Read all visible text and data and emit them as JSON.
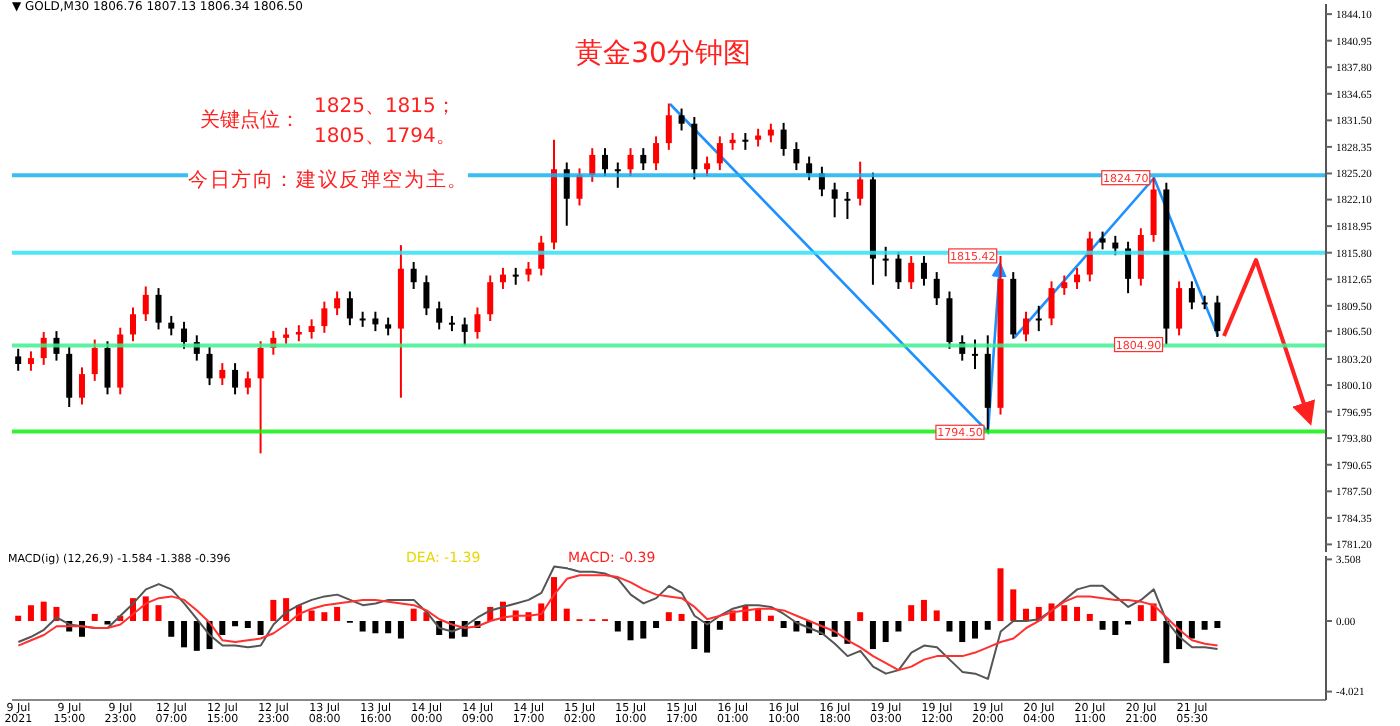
{
  "chart_data": [
    {
      "type": "candlestick",
      "title": "黄金30分钟图",
      "annotations": [
        "▼ GOLD,M30 1806.76 1807.13 1806.34 1806.50",
        "关键点位：",
        "1825、1815；",
        "1805、1794。",
        "今日方向：建议反弹空为主。",
        {
          "text": "1824.70",
          "y": 1824.7
        },
        {
          "text": "1815.42",
          "y": 1815.42
        },
        {
          "text": "1804.90",
          "y": 1804.9
        },
        {
          "text": "1794.50",
          "y": 1794.5
        }
      ],
      "categories": [
        null,
        null,
        null,
        null,
        null,
        null,
        null,
        null,
        null,
        null,
        null,
        null,
        null,
        null,
        null,
        null,
        null,
        null,
        null,
        null,
        null,
        null,
        null,
        null,
        null,
        null,
        null,
        null,
        null,
        null,
        null,
        null,
        null,
        null,
        null,
        null,
        null,
        null,
        null,
        null,
        null,
        null,
        null,
        null,
        null,
        null,
        null,
        null,
        null,
        null,
        null,
        null,
        null,
        null,
        null,
        null,
        null,
        null,
        null,
        null,
        null,
        null,
        null,
        null,
        null,
        null,
        null,
        null,
        null,
        null,
        null,
        null,
        null,
        null,
        null,
        null,
        null,
        null,
        null,
        null,
        null,
        null,
        null,
        null,
        null,
        null,
        null,
        null,
        null,
        null,
        null,
        null,
        null,
        null,
        null,
        null,
        null,
        null,
        null,
        null,
        null,
        null,
        null
      ],
      "ohlc": [
        [
          1803.5,
          1804.4,
          1801.8,
          1802.6
        ],
        [
          1802.6,
          1804.1,
          1801.8,
          1803.3
        ],
        [
          1803.3,
          1806.4,
          1802.5,
          1805.7
        ],
        [
          1805.7,
          1806.5,
          1803.0,
          1803.8
        ],
        [
          1803.8,
          1804.6,
          1797.5,
          1798.6
        ],
        [
          1798.6,
          1802.2,
          1797.8,
          1801.4
        ],
        [
          1801.4,
          1805.5,
          1800.6,
          1804.5
        ],
        [
          1804.5,
          1805.3,
          1799.0,
          1799.8
        ],
        [
          1799.8,
          1806.9,
          1799.0,
          1806.1
        ],
        [
          1806.1,
          1809.3,
          1805.3,
          1808.5
        ],
        [
          1808.5,
          1811.8,
          1807.7,
          1810.8
        ],
        [
          1810.8,
          1811.6,
          1806.7,
          1807.5
        ],
        [
          1807.5,
          1808.3,
          1806.0,
          1806.8
        ],
        [
          1806.8,
          1807.6,
          1804.4,
          1805.2
        ],
        [
          1805.2,
          1806.0,
          1803.0,
          1803.8
        ],
        [
          1803.8,
          1804.6,
          1800.1,
          1800.9
        ],
        [
          1800.9,
          1802.7,
          1800.1,
          1801.9
        ],
        [
          1801.9,
          1802.7,
          1799.0,
          1799.8
        ],
        [
          1799.8,
          1801.7,
          1799.0,
          1800.9
        ],
        [
          1800.9,
          1805.3,
          1792.0,
          1804.5
        ],
        [
          1804.5,
          1806.5,
          1803.7,
          1805.7
        ],
        [
          1805.7,
          1806.9,
          1805.0,
          1806.1
        ],
        [
          1806.1,
          1807.2,
          1805.3,
          1806.4
        ],
        [
          1806.4,
          1807.9,
          1805.6,
          1807.1
        ],
        [
          1807.1,
          1810.0,
          1806.3,
          1809.2
        ],
        [
          1809.2,
          1811.2,
          1808.4,
          1810.4
        ],
        [
          1810.4,
          1811.2,
          1807.2,
          1808.0
        ],
        [
          1808.0,
          1808.8,
          1807.0,
          1808.0
        ],
        [
          1808.0,
          1808.8,
          1806.5,
          1807.3
        ],
        [
          1807.3,
          1808.1,
          1806.0,
          1806.8
        ],
        [
          1806.8,
          1816.7,
          1798.6,
          1813.9
        ],
        [
          1813.9,
          1814.7,
          1811.5,
          1812.3
        ],
        [
          1812.3,
          1813.1,
          1808.4,
          1809.2
        ],
        [
          1809.2,
          1810.0,
          1806.7,
          1807.5
        ],
        [
          1807.5,
          1808.3,
          1806.5,
          1807.3
        ],
        [
          1807.3,
          1808.1,
          1804.8,
          1806.4
        ],
        [
          1806.4,
          1809.3,
          1805.6,
          1808.5
        ],
        [
          1808.5,
          1813.1,
          1807.7,
          1812.3
        ],
        [
          1812.3,
          1814.0,
          1811.5,
          1813.2
        ],
        [
          1813.2,
          1814.0,
          1812.0,
          1813.2
        ],
        [
          1813.2,
          1814.7,
          1812.4,
          1813.9
        ],
        [
          1813.9,
          1817.8,
          1813.1,
          1817.0
        ],
        [
          1817.0,
          1829.2,
          1816.2,
          1825.7
        ],
        [
          1825.7,
          1826.5,
          1819.0,
          1822.2
        ],
        [
          1822.2,
          1825.8,
          1821.4,
          1825.0
        ],
        [
          1825.0,
          1828.2,
          1824.2,
          1827.4
        ],
        [
          1827.4,
          1828.2,
          1824.9,
          1825.7
        ],
        [
          1825.7,
          1826.5,
          1823.5,
          1825.7
        ],
        [
          1825.7,
          1828.2,
          1824.9,
          1827.4
        ],
        [
          1827.4,
          1828.2,
          1825.6,
          1826.4
        ],
        [
          1826.4,
          1829.6,
          1825.6,
          1828.8
        ],
        [
          1828.8,
          1833.5,
          1828.0,
          1832.1
        ],
        [
          1832.1,
          1832.9,
          1830.3,
          1831.1
        ],
        [
          1831.1,
          1831.9,
          1824.5,
          1825.7
        ],
        [
          1825.7,
          1827.2,
          1824.9,
          1826.4
        ],
        [
          1826.4,
          1829.6,
          1825.6,
          1828.8
        ],
        [
          1828.8,
          1830.0,
          1828.0,
          1829.2
        ],
        [
          1829.2,
          1830.0,
          1828.0,
          1829.2
        ],
        [
          1829.2,
          1830.5,
          1828.4,
          1829.7
        ],
        [
          1829.7,
          1831.1,
          1828.9,
          1830.4
        ],
        [
          1830.4,
          1831.2,
          1827.3,
          1828.1
        ],
        [
          1828.1,
          1828.9,
          1825.6,
          1826.4
        ],
        [
          1826.4,
          1827.2,
          1824.4,
          1825.2
        ],
        [
          1825.2,
          1826.0,
          1822.5,
          1823.3
        ],
        [
          1823.3,
          1824.1,
          1820.0,
          1822.2
        ],
        [
          1822.2,
          1823.0,
          1819.8,
          1822.2
        ],
        [
          1822.2,
          1826.6,
          1821.4,
          1824.5
        ],
        [
          1824.5,
          1825.3,
          1812.0,
          1815.1
        ],
        [
          1815.1,
          1816.5,
          1813.0,
          1815.1
        ],
        [
          1815.1,
          1815.9,
          1811.5,
          1812.3
        ],
        [
          1812.3,
          1815.4,
          1811.5,
          1814.6
        ],
        [
          1814.6,
          1815.4,
          1811.9,
          1812.7
        ],
        [
          1812.7,
          1813.5,
          1809.6,
          1810.4
        ],
        [
          1810.4,
          1811.2,
          1804.4,
          1805.2
        ],
        [
          1805.2,
          1806.0,
          1803.0,
          1803.8
        ],
        [
          1803.8,
          1805.5,
          1802.0,
          1803.8
        ],
        [
          1803.8,
          1806.0,
          1794.5,
          1797.4
        ],
        [
          1797.4,
          1815.42,
          1796.6,
          1812.7
        ],
        [
          1812.7,
          1813.5,
          1805.6,
          1806.1
        ],
        [
          1806.1,
          1808.8,
          1805.3,
          1808.0
        ],
        [
          1808.0,
          1809.5,
          1806.5,
          1808.0
        ],
        [
          1808.0,
          1812.4,
          1807.2,
          1811.6
        ],
        [
          1811.6,
          1813.1,
          1810.8,
          1812.3
        ],
        [
          1812.3,
          1814.0,
          1811.5,
          1813.2
        ],
        [
          1813.2,
          1818.3,
          1812.4,
          1817.5
        ],
        [
          1817.5,
          1818.3,
          1816.2,
          1817.0
        ],
        [
          1817.0,
          1817.8,
          1815.5,
          1816.3
        ],
        [
          1816.3,
          1817.1,
          1811.0,
          1812.7
        ],
        [
          1812.7,
          1818.7,
          1811.9,
          1817.9
        ],
        [
          1817.9,
          1824.7,
          1817.1,
          1823.3
        ],
        [
          1823.3,
          1824.1,
          1804.9,
          1806.8
        ],
        [
          1806.8,
          1812.4,
          1806.0,
          1811.6
        ],
        [
          1811.6,
          1812.4,
          1809.1,
          1809.9
        ],
        [
          1809.9,
          1810.7,
          1809.1,
          1809.9
        ],
        [
          1809.9,
          1810.7,
          1805.8,
          1806.5
        ],
        null,
        null,
        null,
        null,
        null,
        null,
        null,
        null
      ],
      "colors": [
        "#000000",
        "#ff0000",
        "#ff0000",
        "#000000",
        "#000000",
        "#ff0000",
        "#ff0000",
        "#000000",
        "#ff0000",
        "#ff0000",
        "#ff0000",
        "#000000",
        "#000000",
        "#000000",
        "#000000",
        "#000000",
        "#ff0000",
        "#000000",
        "#ff0000",
        "#ff0000",
        "#ff0000",
        "#ff0000",
        "#ff0000",
        "#ff0000",
        "#ff0000",
        "#ff0000",
        "#000000",
        "#000000",
        "#000000",
        "#000000",
        "#ff0000",
        "#000000",
        "#000000",
        "#000000",
        "#000000",
        "#000000",
        "#ff0000",
        "#ff0000",
        "#ff0000",
        "#000000",
        "#ff0000",
        "#ff0000",
        "#ff0000",
        "#000000",
        "#ff0000",
        "#ff0000",
        "#000000",
        "#000000",
        "#ff0000",
        "#000000",
        "#ff0000",
        "#ff0000",
        "#000000",
        "#000000",
        "#ff0000",
        "#ff0000",
        "#ff0000",
        "#000000",
        "#ff0000",
        "#ff0000",
        "#000000",
        "#000000",
        "#000000",
        "#000000",
        "#000000",
        "#000000",
        "#ff0000",
        "#000000",
        "#000000",
        "#000000",
        "#ff0000",
        "#000000",
        "#000000",
        "#000000",
        "#000000",
        "#000000",
        "#000000",
        "#ff0000",
        "#000000",
        "#ff0000",
        "#000000",
        "#ff0000",
        "#ff0000",
        "#ff0000",
        "#ff0000",
        "#000000",
        "#000000",
        "#000000",
        "#ff0000",
        "#ff0000",
        "#000000",
        "#ff0000",
        "#000000",
        "#000000",
        "#000000",
        null,
        null,
        null,
        null,
        null,
        null,
        null,
        null
      ],
      "ylim": [
        1780.3,
        1845.3
      ],
      "yticks": [
        {
          "value": 1844.1,
          "label": "1844.10"
        },
        {
          "value": 1840.95,
          "label": "1840.95"
        },
        {
          "value": 1837.8,
          "label": "1837.80"
        },
        {
          "value": 1834.65,
          "label": "1834.65"
        },
        {
          "value": 1831.5,
          "label": "1831.50"
        },
        {
          "value": 1828.35,
          "label": "1828.35"
        },
        {
          "value": 1825.2,
          "label": "1825.20"
        },
        {
          "value": 1822.1,
          "label": "1822.10"
        },
        {
          "value": 1818.95,
          "label": "1818.95"
        },
        {
          "value": 1815.8,
          "label": "1815.80"
        },
        {
          "value": 1812.65,
          "label": "1812.65"
        },
        {
          "value": 1809.5,
          "label": "1809.50"
        },
        {
          "value": 1806.5,
          "label": "1806.50"
        },
        {
          "value": 1803.2,
          "label": "1803.20"
        },
        {
          "value": 1800.1,
          "label": "1800.10"
        },
        {
          "value": 1796.95,
          "label": "1796.95"
        },
        {
          "value": 1793.8,
          "label": "1793.80"
        },
        {
          "value": 1790.65,
          "label": "1790.65"
        },
        {
          "value": 1787.5,
          "label": "1787.50"
        },
        {
          "value": 1784.35,
          "label": "1784.35"
        },
        {
          "value": 1781.2,
          "label": "1781.20"
        }
      ],
      "tick_labels": "y",
      "ref_lines": [
        {
          "axis": "y",
          "value": 1825.0,
          "color": "#1ab0ee"
        },
        {
          "axis": "y",
          "value": 1815.8,
          "color": "#33e0f5"
        },
        {
          "axis": "y",
          "value": 1804.8,
          "color": "#40f090"
        },
        {
          "axis": "y",
          "value": 1794.6,
          "color": "#11ee11"
        }
      ]
    },
    {
      "type": "bar",
      "annotations": [
        "MACD(ig) (12,26,9) -1.584 -1.388 -0.396",
        "DEA:  -1.39",
        "MACD:  -0.39"
      ],
      "categories": [
        "9 Jul 2021",
        null,
        null,
        null,
        "9 Jul 15:00",
        null,
        null,
        null,
        "9 Jul 23:00",
        null,
        null,
        null,
        "12 Jul 07:00",
        null,
        null,
        null,
        "12 Jul 15:00",
        null,
        null,
        null,
        "12 Jul 23:00",
        null,
        null,
        null,
        "13 Jul 08:00",
        null,
        null,
        null,
        "13 Jul 16:00",
        null,
        null,
        null,
        "14 Jul 00:00",
        null,
        null,
        null,
        "14 Jul 09:00",
        null,
        null,
        null,
        "14 Jul 17:00",
        null,
        null,
        null,
        "15 Jul 02:00",
        null,
        null,
        null,
        "15 Jul 10:00",
        null,
        null,
        null,
        "15 Jul 17:00",
        null,
        null,
        null,
        "16 Jul 01:00",
        null,
        null,
        null,
        "16 Jul 10:00",
        null,
        null,
        null,
        "16 Jul 18:00",
        null,
        null,
        null,
        "19 Jul 03:00",
        null,
        null,
        null,
        "19 Jul 12:00",
        null,
        null,
        null,
        "19 Jul 20:00",
        null,
        null,
        null,
        "20 Jul 04:00",
        null,
        null,
        null,
        "20 Jul 11:00",
        null,
        null,
        null,
        "20 Jul 21:00",
        null,
        null,
        null,
        "21 Jul 05:30",
        null,
        null,
        null,
        null,
        null,
        null,
        null,
        null,
        null,
        null
      ],
      "series": [
        {
          "type": "bar",
          "values": [
            0.3,
            0.9,
            1.1,
            0.8,
            -0.6,
            -0.9,
            0.4,
            -0.2,
            0.3,
            1.3,
            1.4,
            0.9,
            -0.9,
            -1.5,
            -1.7,
            -1.6,
            -0.8,
            -0.3,
            -0.4,
            -0.8,
            1.2,
            1.3,
            0.9,
            0.6,
            0.5,
            0.8,
            -0.1,
            -0.6,
            -0.7,
            -0.7,
            -1.0,
            0.7,
            0.5,
            -0.8,
            -1.0,
            -0.9,
            -0.4,
            0.8,
            1.1,
            0.6,
            0.5,
            1.0,
            2.5,
            0.7,
            0.1,
            0.1,
            0.1,
            -0.6,
            -1.1,
            -1.0,
            -0.4,
            0.5,
            0.4,
            -1.6,
            -1.8,
            -0.5,
            0.6,
            0.9,
            0.7,
            0.3,
            -0.4,
            -0.6,
            -0.7,
            -0.8,
            -0.9,
            -1.3,
            0.5,
            -1.6,
            -1.2,
            -0.6,
            0.9,
            1.2,
            0.6,
            -0.6,
            -1.2,
            -1.0,
            -0.5,
            3.0,
            1.8,
            0.7,
            0.8,
            1.0,
            0.9,
            0.8,
            0.4,
            -0.5,
            -0.8,
            -0.2,
            0.9,
            1.0,
            -2.4,
            -1.6,
            -1.0,
            -0.5,
            -0.4,
            null,
            null,
            null,
            null,
            null,
            null,
            null,
            null
          ],
          "colors": [
            "#ff0000",
            "#ff0000",
            "#ff0000",
            "#ff0000",
            "#000000",
            "#000000",
            "#ff0000",
            "#000000",
            "#ff0000",
            "#ff0000",
            "#ff0000",
            "#ff0000",
            "#000000",
            "#000000",
            "#000000",
            "#000000",
            "#000000",
            "#000000",
            "#000000",
            "#000000",
            "#ff0000",
            "#ff0000",
            "#ff0000",
            "#ff0000",
            "#ff0000",
            "#ff0000",
            "#000000",
            "#000000",
            "#000000",
            "#000000",
            "#000000",
            "#ff0000",
            "#ff0000",
            "#000000",
            "#000000",
            "#000000",
            "#000000",
            "#ff0000",
            "#ff0000",
            "#ff0000",
            "#ff0000",
            "#ff0000",
            "#ff0000",
            "#ff0000",
            "#ff0000",
            "#ff0000",
            "#ff0000",
            "#000000",
            "#000000",
            "#000000",
            "#000000",
            "#ff0000",
            "#ff0000",
            "#000000",
            "#000000",
            "#000000",
            "#ff0000",
            "#ff0000",
            "#ff0000",
            "#ff0000",
            "#000000",
            "#000000",
            "#000000",
            "#000000",
            "#000000",
            "#000000",
            "#ff0000",
            "#000000",
            "#000000",
            "#000000",
            "#ff0000",
            "#ff0000",
            "#ff0000",
            "#000000",
            "#000000",
            "#000000",
            "#000000",
            "#ff0000",
            "#ff0000",
            "#ff0000",
            "#ff0000",
            "#ff0000",
            "#ff0000",
            "#ff0000",
            "#ff0000",
            "#000000",
            "#000000",
            "#000000",
            "#ff0000",
            "#ff0000",
            "#000000",
            "#000000",
            "#000000",
            "#000000",
            "#000000",
            null,
            null,
            null,
            null,
            null,
            null,
            null,
            null
          ]
        },
        {
          "type": "line",
          "color": "#555555",
          "values": [
            -1.2,
            -0.9,
            -0.5,
            0.2,
            -0.2,
            -0.3,
            -0.4,
            -0.4,
            0.3,
            1.0,
            1.8,
            2.1,
            1.8,
            1.0,
            0.1,
            -0.8,
            -1.4,
            -1.4,
            -1.5,
            -1.4,
            -0.2,
            0.5,
            0.9,
            1.2,
            1.4,
            1.5,
            1.2,
            0.9,
            1.0,
            1.2,
            1.2,
            1.2,
            0.5,
            -0.4,
            -0.6,
            -0.3,
            0.2,
            0.6,
            0.8,
            1.0,
            1.2,
            1.6,
            3.1,
            3.0,
            2.8,
            2.8,
            2.7,
            2.4,
            1.5,
            1.0,
            1.3,
            2.0,
            1.6,
            0.3,
            -0.2,
            0.3,
            0.7,
            0.9,
            0.9,
            0.8,
            0.4,
            -0.1,
            -0.4,
            -0.7,
            -1.3,
            -2.0,
            -1.7,
            -2.6,
            -3.0,
            -2.8,
            -1.8,
            -1.4,
            -1.5,
            -2.2,
            -2.9,
            -3.0,
            -3.3,
            -0.6,
            0.0,
            0.0,
            0.1,
            0.6,
            1.2,
            1.8,
            2.0,
            2.0,
            1.4,
            0.8,
            1.2,
            1.8,
            0.0,
            -0.9,
            -1.5,
            -1.5,
            -1.6,
            null,
            null,
            null,
            null,
            null,
            null,
            null,
            null
          ]
        },
        {
          "type": "line",
          "color": "#ff3030",
          "values": [
            -1.4,
            -1.1,
            -0.8,
            -0.3,
            -0.3,
            -0.3,
            -0.4,
            -0.4,
            -0.2,
            0.4,
            1.0,
            1.3,
            1.4,
            1.2,
            0.6,
            -0.1,
            -1.1,
            -1.2,
            -1.1,
            -1.0,
            -0.7,
            -0.2,
            0.4,
            0.7,
            0.9,
            1.0,
            1.1,
            1.2,
            1.2,
            1.1,
            1.0,
            0.9,
            0.6,
            0.1,
            -0.2,
            -0.4,
            -0.3,
            0.0,
            0.2,
            0.3,
            0.3,
            0.4,
            1.5,
            2.4,
            2.6,
            2.6,
            2.6,
            2.5,
            2.2,
            1.8,
            1.5,
            1.4,
            1.3,
            0.8,
            0.1,
            0.3,
            0.5,
            0.6,
            0.7,
            0.7,
            0.6,
            0.3,
            0.0,
            -0.3,
            -0.6,
            -1.1,
            -1.5,
            -2.0,
            -2.4,
            -2.8,
            -2.6,
            -2.2,
            -2.0,
            -2.0,
            -2.0,
            -1.8,
            -1.5,
            -1.2,
            -1.0,
            -0.4,
            0.0,
            0.6,
            1.1,
            1.4,
            1.4,
            1.3,
            1.2,
            1.2,
            1.1,
            0.9,
            0.2,
            -0.5,
            -1.1,
            -1.3,
            -1.4,
            null,
            null,
            null,
            null,
            null,
            null,
            null,
            null
          ]
        }
      ],
      "ylim": [
        -4.5,
        3.7
      ],
      "yticks": [
        3.508,
        {
          "value": 0,
          "label": "0.00"
        },
        -4.021
      ]
    }
  ]
}
